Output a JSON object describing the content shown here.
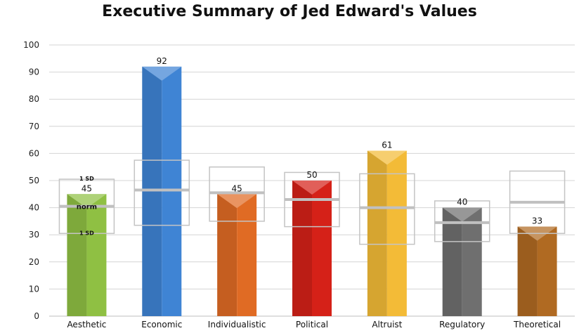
{
  "chart_data": {
    "type": "bar",
    "title": "Executive Summary of Jed Edward's Values",
    "categories": [
      "Aesthetic",
      "Economic",
      "Individualistic",
      "Political",
      "Altruist",
      "Regulatory",
      "Theoretical"
    ],
    "values": [
      45,
      92,
      45,
      50,
      61,
      40,
      33
    ],
    "colors": [
      "#8fc043",
      "#3f84d4",
      "#e06b24",
      "#d52118",
      "#f3bb37",
      "#6f6f6f",
      "#b06a22"
    ],
    "norm_bands": [
      {
        "norm": 40.5,
        "low": 30.5,
        "high": 50.5
      },
      {
        "norm": 46.5,
        "low": 33.5,
        "high": 57.5
      },
      {
        "norm": 45.5,
        "low": 35,
        "high": 55
      },
      {
        "norm": 43,
        "low": 33,
        "high": 53
      },
      {
        "norm": 40,
        "low": 26.5,
        "high": 52.5
      },
      {
        "norm": 34.5,
        "low": 27.5,
        "high": 42.5
      },
      {
        "norm": 42,
        "low": 30.5,
        "high": 53.5
      }
    ],
    "band_labels": {
      "upper": "1 SD",
      "middle": "norm",
      "lower": "1 SD"
    },
    "ylim": [
      0,
      100
    ],
    "yticks": [
      0,
      10,
      20,
      30,
      40,
      50,
      60,
      70,
      80,
      90,
      100
    ],
    "grid": true,
    "xlabel": "",
    "ylabel": ""
  }
}
